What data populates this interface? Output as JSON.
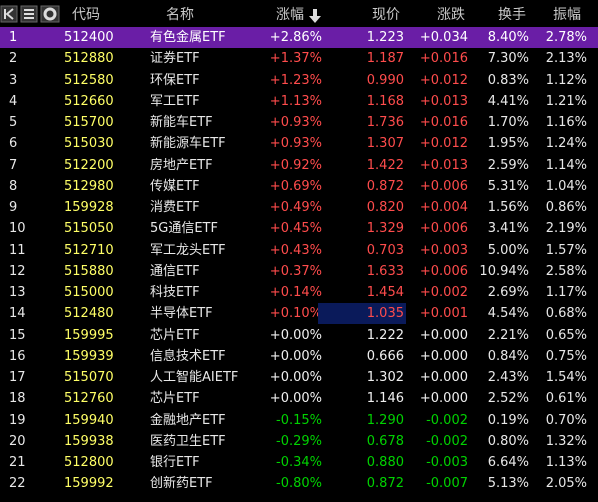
{
  "header": {
    "columns": [
      "代码",
      "名称",
      "涨幅",
      "现价",
      "涨跌",
      "换手",
      "振幅"
    ]
  },
  "table": {
    "rows": [
      [
        "1",
        "512400",
        "有色金属ETF",
        "+2.86%",
        "1.223",
        "+0.034",
        "8.40%",
        "2.78%"
      ],
      [
        "2",
        "512880",
        "证券ETF",
        "+1.37%",
        "1.187",
        "+0.016",
        "7.30%",
        "2.13%"
      ],
      [
        "3",
        "512580",
        "环保ETF",
        "+1.23%",
        "0.990",
        "+0.012",
        "0.83%",
        "1.12%"
      ],
      [
        "4",
        "512660",
        "军工ETF",
        "+1.13%",
        "1.168",
        "+0.013",
        "4.41%",
        "1.21%"
      ],
      [
        "5",
        "515700",
        "新能车ETF",
        "+0.93%",
        "1.736",
        "+0.016",
        "1.70%",
        "1.16%"
      ],
      [
        "6",
        "515030",
        "新能源车ETF",
        "+0.93%",
        "1.307",
        "+0.012",
        "1.95%",
        "1.24%"
      ],
      [
        "7",
        "512200",
        "房地产ETF",
        "+0.92%",
        "1.422",
        "+0.013",
        "2.59%",
        "1.14%"
      ],
      [
        "8",
        "512980",
        "传媒ETF",
        "+0.69%",
        "0.872",
        "+0.006",
        "5.31%",
        "1.04%"
      ],
      [
        "9",
        "159928",
        "消费ETF",
        "+0.49%",
        "0.820",
        "+0.004",
        "1.56%",
        "0.86%"
      ],
      [
        "10",
        "515050",
        "5G通信ETF",
        "+0.45%",
        "1.329",
        "+0.006",
        "3.41%",
        "2.19%"
      ],
      [
        "11",
        "512710",
        "军工龙头ETF",
        "+0.43%",
        "0.703",
        "+0.003",
        "5.00%",
        "1.57%"
      ],
      [
        "12",
        "515880",
        "通信ETF",
        "+0.37%",
        "1.633",
        "+0.006",
        "10.94%",
        "2.58%"
      ],
      [
        "13",
        "515000",
        "科技ETF",
        "+0.14%",
        "1.454",
        "+0.002",
        "2.69%",
        "1.17%"
      ],
      [
        "14",
        "512480",
        "半导体ETF",
        "+0.10%",
        "1.035",
        "+0.001",
        "4.54%",
        "0.68%"
      ],
      [
        "15",
        "159995",
        "芯片ETF",
        "+0.00%",
        "1.222",
        "+0.000",
        "2.21%",
        "0.65%"
      ],
      [
        "16",
        "159939",
        "信息技术ETF",
        "+0.00%",
        "0.666",
        "+0.000",
        "0.84%",
        "0.75%"
      ],
      [
        "17",
        "515070",
        "人工智能AIETF",
        "+0.00%",
        "1.302",
        "+0.000",
        "2.43%",
        "1.54%"
      ],
      [
        "18",
        "512760",
        "芯片ETF",
        "+0.00%",
        "1.146",
        "+0.000",
        "2.52%",
        "0.61%"
      ],
      [
        "19",
        "159940",
        "金融地产ETF",
        "-0.15%",
        "1.290",
        "-0.002",
        "0.19%",
        "0.70%"
      ],
      [
        "20",
        "159938",
        "医药卫生ETF",
        "-0.29%",
        "0.678",
        "-0.002",
        "0.80%",
        "1.32%"
      ],
      [
        "21",
        "512800",
        "银行ETF",
        "-0.34%",
        "0.880",
        "-0.003",
        "6.64%",
        "1.13%"
      ],
      [
        "22",
        "159992",
        "创新药ETF",
        "-0.80%",
        "0.872",
        "-0.007",
        "5.13%",
        "2.05%"
      ]
    ]
  }
}
